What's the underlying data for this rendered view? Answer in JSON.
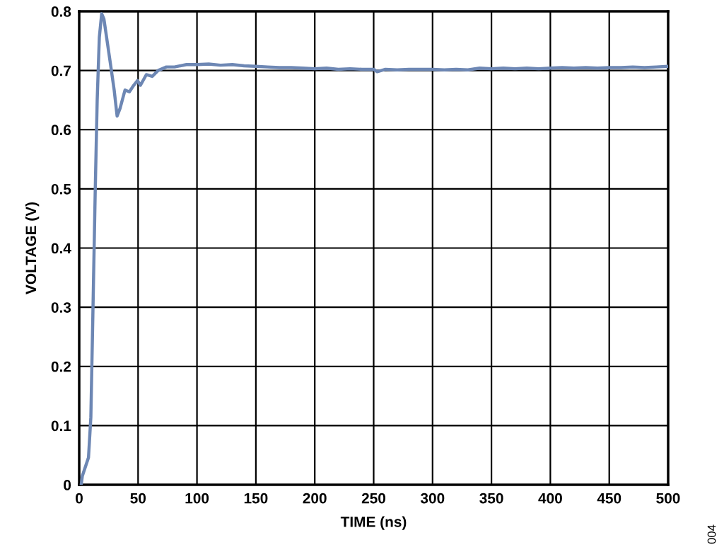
{
  "chart_data": {
    "type": "line",
    "xlabel": "TIME (ns)",
    "ylabel": "VOLTAGE (V)",
    "annotations": [
      "004"
    ],
    "xlim": [
      0,
      500
    ],
    "xticks": [
      0,
      50,
      100,
      150,
      200,
      250,
      300,
      350,
      400,
      450,
      500
    ],
    "ylim": [
      0,
      0.8
    ],
    "yticks": [
      0,
      0.1,
      0.2,
      0.3,
      0.4,
      0.5,
      0.6,
      0.7,
      0.8
    ],
    "grid": true,
    "line_style": "solid",
    "marker": "none",
    "series": [
      {
        "color": "#6d87b4",
        "x": [
          1.7,
          2.7,
          7.9,
          9.9,
          11.6,
          13.6,
          15.3,
          17.1,
          19.1,
          21.0,
          24.0,
          26.7,
          29.7,
          32.2,
          34.7,
          38.9,
          42.6,
          46.3,
          49.5,
          52,
          57,
          62,
          67,
          74,
          81,
          91,
          100,
          110,
          120,
          130,
          140,
          150,
          160,
          170,
          180,
          190,
          200,
          210,
          220,
          230,
          240,
          250,
          253,
          260,
          270,
          280,
          290,
          300,
          310,
          320,
          330,
          340,
          350,
          360,
          370,
          380,
          390,
          400,
          410,
          420,
          430,
          440,
          450,
          460,
          470,
          480,
          490,
          500
        ],
        "values": [
          0.0,
          0.015,
          0.046,
          0.114,
          0.286,
          0.495,
          0.651,
          0.756,
          0.796,
          0.787,
          0.746,
          0.709,
          0.667,
          0.623,
          0.636,
          0.667,
          0.664,
          0.675,
          0.683,
          0.675,
          0.693,
          0.69,
          0.7,
          0.706,
          0.706,
          0.71,
          0.71,
          0.711,
          0.709,
          0.71,
          0.708,
          0.707,
          0.706,
          0.705,
          0.705,
          0.704,
          0.703,
          0.704,
          0.702,
          0.703,
          0.702,
          0.702,
          0.698,
          0.702,
          0.701,
          0.702,
          0.702,
          0.702,
          0.701,
          0.702,
          0.701,
          0.704,
          0.703,
          0.704,
          0.703,
          0.704,
          0.703,
          0.704,
          0.705,
          0.704,
          0.705,
          0.704,
          0.705,
          0.705,
          0.706,
          0.705,
          0.706,
          0.707
        ]
      }
    ]
  }
}
